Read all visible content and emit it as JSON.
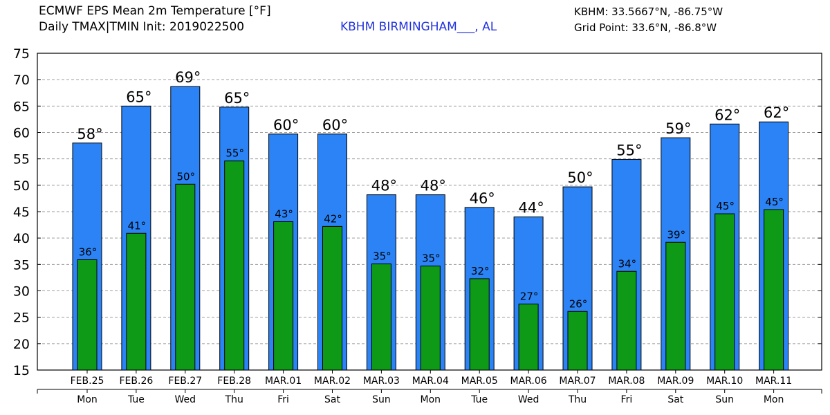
{
  "header": {
    "title_line1": "ECMWF EPS Mean 2m Temperature [°F]",
    "title_line2": "Daily TMAX|TMIN Init: 2019022500",
    "station": "KBHM BIRMINGHAM___, AL",
    "station_color": "#2233dd",
    "coords": "KBHM: 33.5667°N, -86.75°W",
    "grid_point": "Grid Point: 33.6°N, -86.8°W"
  },
  "chart_data": {
    "type": "bar",
    "categories": [
      "FEB.25",
      "FEB.26",
      "FEB.27",
      "FEB.28",
      "MAR.01",
      "MAR.02",
      "MAR.03",
      "MAR.04",
      "MAR.05",
      "MAR.06",
      "MAR.07",
      "MAR.08",
      "MAR.09",
      "MAR.10",
      "MAR.11"
    ],
    "weekdays": [
      "Mon",
      "Tue",
      "Wed",
      "Thu",
      "Fri",
      "Sat",
      "Sun",
      "Mon",
      "Tue",
      "Wed",
      "Thu",
      "Fri",
      "Sat",
      "Sun",
      "Mon"
    ],
    "series": [
      {
        "key": "tmax",
        "values": [
          58,
          65,
          69,
          65,
          60,
          60,
          48,
          48,
          46,
          44,
          50,
          55,
          59,
          62,
          62
        ],
        "bar_values": [
          58,
          65,
          68.7,
          64.8,
          59.7,
          59.7,
          48.2,
          48.2,
          45.8,
          44,
          49.7,
          54.9,
          59,
          61.6,
          62
        ],
        "color": "#2b83f6"
      },
      {
        "key": "tmin",
        "values": [
          36,
          41,
          50,
          55,
          43,
          42,
          35,
          35,
          32,
          27,
          26,
          34,
          39,
          45,
          45
        ],
        "bar_values": [
          35.9,
          40.9,
          50.2,
          54.6,
          43.1,
          42.2,
          35.1,
          34.7,
          32.3,
          27.5,
          26.1,
          33.7,
          39.2,
          44.6,
          45.4
        ],
        "color": "#0e9a16"
      }
    ],
    "label_suffix": "°",
    "yticks": [
      15,
      20,
      25,
      30,
      35,
      40,
      45,
      50,
      55,
      60,
      65,
      70,
      75
    ],
    "ylim": [
      15,
      75
    ],
    "grid": true,
    "grid_style": "dashed-horizontal"
  }
}
